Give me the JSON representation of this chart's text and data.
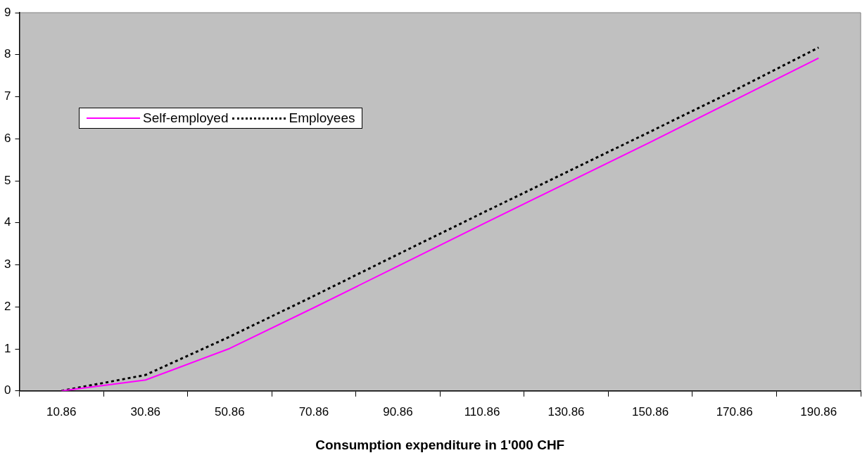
{
  "chart_data": {
    "type": "line",
    "xlabel": "Consumption expenditure in 1'000 CHF",
    "categories": [
      "10.86",
      "30.86",
      "50.86",
      "70.86",
      "90.86",
      "110.86",
      "130.86",
      "150.86",
      "170.86",
      "190.86"
    ],
    "series": [
      {
        "name": "Self-employed",
        "color": "#ff00ff",
        "line_style": "solid",
        "values": [
          0,
          0.26,
          1.01,
          1.98,
          2.97,
          3.96,
          4.94,
          5.92,
          6.92,
          7.92
        ]
      },
      {
        "name": "Employees",
        "color": "#000000",
        "line_style": "dotted",
        "values": [
          0,
          0.38,
          1.29,
          2.26,
          3.25,
          4.23,
          5.2,
          6.17,
          7.15,
          8.17
        ]
      }
    ],
    "ylim": [
      0,
      9
    ],
    "yticks": [
      0,
      1,
      2,
      3,
      4,
      5,
      6,
      7,
      8,
      9
    ],
    "grid": false,
    "legend": "top left",
    "marker": "none"
  }
}
